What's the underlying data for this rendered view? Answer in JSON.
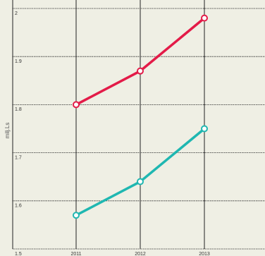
{
  "chart_data": {
    "type": "line",
    "y_label": "milj.Ls",
    "categories": [
      "2011",
      "2012",
      "2013"
    ],
    "series": [
      {
        "color": "#e31b48",
        "values": [
          1.8,
          1.87,
          1.98
        ]
      },
      {
        "color": "#1fb7b1",
        "values": [
          1.57,
          1.64,
          1.75
        ]
      }
    ],
    "ylim": [
      1.5,
      2
    ],
    "yticks": [
      1.5,
      1.6,
      1.7,
      1.8,
      1.9,
      2
    ],
    "grid": true
  }
}
